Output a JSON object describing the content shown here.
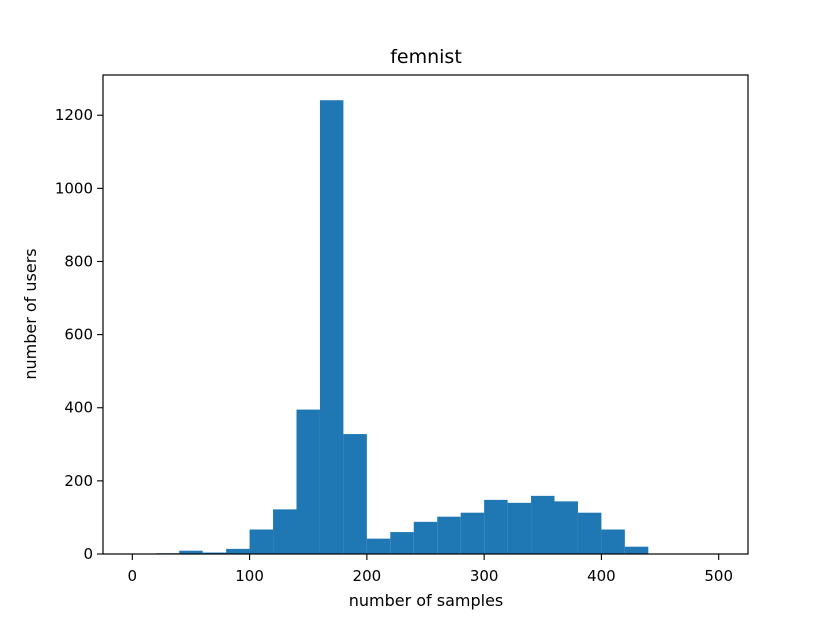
{
  "chart_data": {
    "type": "bar",
    "title": "femnist",
    "xlabel": "number of samples",
    "ylabel": "number of users",
    "bar_color": "#1f77b4",
    "xlim": [
      -25,
      525
    ],
    "ylim": [
      0,
      1310
    ],
    "xticks": [
      0,
      100,
      200,
      300,
      400,
      500
    ],
    "yticks": [
      0,
      200,
      400,
      600,
      800,
      1000,
      1200
    ],
    "grid": false,
    "bins": [
      {
        "x0": 20,
        "x1": 40,
        "value": 2
      },
      {
        "x0": 40,
        "x1": 60,
        "value": 9
      },
      {
        "x0": 60,
        "x1": 80,
        "value": 4
      },
      {
        "x0": 80,
        "x1": 100,
        "value": 14
      },
      {
        "x0": 100,
        "x1": 120,
        "value": 67
      },
      {
        "x0": 120,
        "x1": 140,
        "value": 122
      },
      {
        "x0": 140,
        "x1": 160,
        "value": 395
      },
      {
        "x0": 160,
        "x1": 180,
        "value": 1241
      },
      {
        "x0": 180,
        "x1": 200,
        "value": 328
      },
      {
        "x0": 200,
        "x1": 220,
        "value": 42
      },
      {
        "x0": 220,
        "x1": 240,
        "value": 60
      },
      {
        "x0": 240,
        "x1": 260,
        "value": 88
      },
      {
        "x0": 260,
        "x1": 280,
        "value": 102
      },
      {
        "x0": 280,
        "x1": 300,
        "value": 113
      },
      {
        "x0": 300,
        "x1": 320,
        "value": 148
      },
      {
        "x0": 320,
        "x1": 340,
        "value": 140
      },
      {
        "x0": 340,
        "x1": 360,
        "value": 159
      },
      {
        "x0": 360,
        "x1": 380,
        "value": 144
      },
      {
        "x0": 380,
        "x1": 400,
        "value": 113
      },
      {
        "x0": 400,
        "x1": 420,
        "value": 67
      },
      {
        "x0": 420,
        "x1": 440,
        "value": 20
      }
    ]
  }
}
